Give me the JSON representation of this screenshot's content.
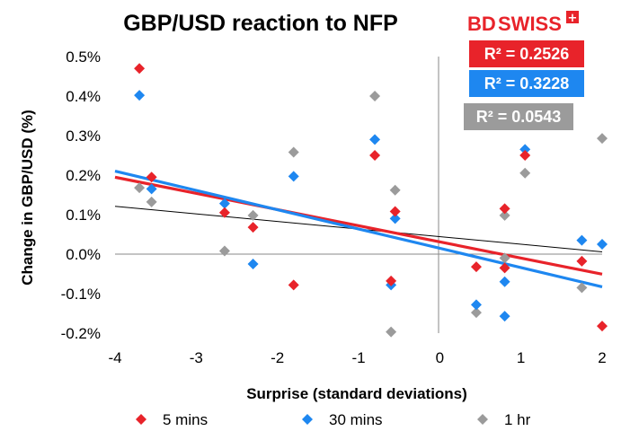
{
  "brand": {
    "name_part1": "BD",
    "name_part2": "SWISS",
    "color": "#e8232a"
  },
  "chart_data": {
    "type": "scatter",
    "title": "GBP/USD reaction to NFP",
    "xlabel": "Surprise (standard deviations)",
    "ylabel": "Change in GBP/USD  (%)",
    "xlim": [
      -4,
      2
    ],
    "ylim": [
      -0.2,
      0.5
    ],
    "xticks": [
      -4,
      -3,
      -2,
      -1,
      0,
      1,
      2
    ],
    "xtick_labels": [
      "-4",
      "-3",
      "-2",
      "-1",
      "0",
      "1",
      "2"
    ],
    "yticks": [
      -0.2,
      -0.1,
      0.0,
      0.1,
      0.2,
      0.3,
      0.4,
      0.5
    ],
    "ytick_labels": [
      "-0.2%",
      "-0.1%",
      "0.0%",
      "0.1%",
      "0.2%",
      "0.3%",
      "0.4%",
      "0.5%"
    ],
    "grid": false,
    "legend_position": "bottom",
    "series": [
      {
        "name": "5 mins",
        "color": "#e8232a",
        "marker": "diamond",
        "trendline": {
          "slope": -0.0409,
          "intercept": 0.031,
          "color": "#e8232a"
        },
        "r2_label": "R² = 0.2526",
        "points": [
          [
            -3.7,
            0.47
          ],
          [
            -3.55,
            0.195
          ],
          [
            -2.65,
            0.105
          ],
          [
            -2.3,
            0.068
          ],
          [
            -1.8,
            -0.078
          ],
          [
            -0.8,
            0.25
          ],
          [
            -0.55,
            0.108
          ],
          [
            -0.6,
            -0.068
          ],
          [
            0.45,
            -0.032
          ],
          [
            0.8,
            0.115
          ],
          [
            0.8,
            -0.035
          ],
          [
            1.05,
            0.25
          ],
          [
            1.75,
            -0.018
          ],
          [
            2.0,
            -0.182
          ]
        ]
      },
      {
        "name": "30 mins",
        "color": "#1e87f0",
        "marker": "diamond",
        "trendline": {
          "slope": -0.0488,
          "intercept": 0.0148,
          "color": "#1e87f0"
        },
        "r2_label": "R² = 0.3228",
        "points": [
          [
            -3.7,
            0.402
          ],
          [
            -3.55,
            0.165
          ],
          [
            -2.65,
            0.128
          ],
          [
            -2.3,
            -0.025
          ],
          [
            -1.8,
            0.197
          ],
          [
            -0.8,
            0.29
          ],
          [
            -0.55,
            0.09
          ],
          [
            -0.6,
            -0.078
          ],
          [
            0.45,
            -0.128
          ],
          [
            0.8,
            -0.07
          ],
          [
            0.8,
            -0.157
          ],
          [
            1.05,
            0.265
          ],
          [
            1.75,
            0.035
          ],
          [
            2.0,
            0.025
          ]
        ]
      },
      {
        "name": "1 hr",
        "color": "#9b9b9b",
        "marker": "diamond",
        "trendline": {
          "slope": -0.0192,
          "intercept": 0.0442,
          "color": "#000000"
        },
        "r2_label": "R² = 0.0543",
        "points": [
          [
            -3.7,
            0.168
          ],
          [
            -3.55,
            0.132
          ],
          [
            -2.65,
            0.008
          ],
          [
            -2.3,
            0.098
          ],
          [
            -1.8,
            0.258
          ],
          [
            -0.8,
            0.4
          ],
          [
            -0.55,
            0.162
          ],
          [
            -0.6,
            -0.197
          ],
          [
            0.45,
            -0.148
          ],
          [
            0.8,
            0.098
          ],
          [
            0.8,
            -0.01
          ],
          [
            1.05,
            0.205
          ],
          [
            1.75,
            -0.085
          ],
          [
            2.0,
            0.293
          ]
        ]
      }
    ]
  }
}
